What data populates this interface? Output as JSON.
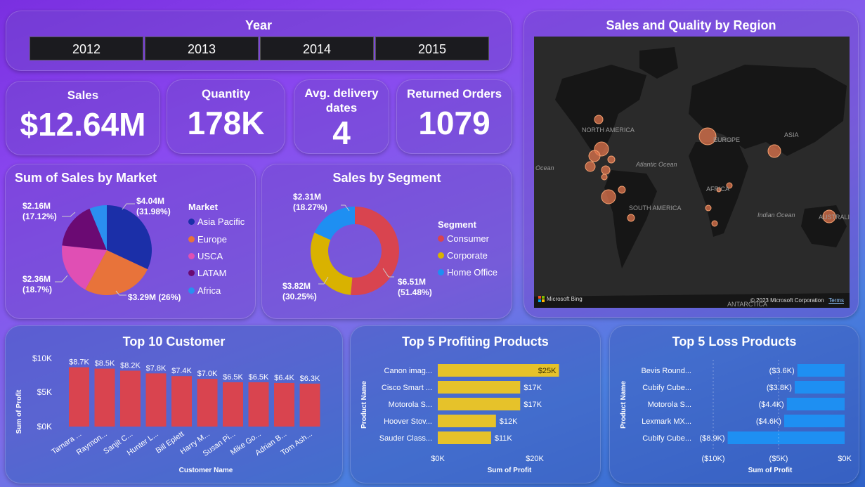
{
  "year_slicer": {
    "title": "Year",
    "years": [
      "2012",
      "2013",
      "2014",
      "2015"
    ]
  },
  "kpis": {
    "sales": {
      "label": "Sales",
      "value": "$12.64M"
    },
    "quantity": {
      "label": "Quantity",
      "value": "178K"
    },
    "delivery": {
      "label": "Avg. delivery dates",
      "value": "4"
    },
    "returned": {
      "label": "Returned Orders",
      "value": "1079"
    }
  },
  "market_chart": {
    "title": "Sum of Sales by Market",
    "legend_title": "Market",
    "legend": [
      "Asia Pacific",
      "Europe",
      "USCA",
      "LATAM",
      "Africa"
    ],
    "colors": [
      "#1b2fa8",
      "#e8733a",
      "#e04fb4",
      "#6b0a73",
      "#2a8ff0"
    ],
    "labels": [
      {
        "line1": "$4.04M",
        "line2": "(31.98%)"
      },
      {
        "line1": "$3.29M (26%)",
        "line2": ""
      },
      {
        "line1": "$2.36M",
        "line2": "(18.7%)"
      },
      {
        "line1": "$2.16M",
        "line2": "(17.12%)"
      }
    ]
  },
  "segment_chart": {
    "title": "Sales by Segment",
    "legend_title": "Segment",
    "legend": [
      "Consumer",
      "Corporate",
      "Home Office"
    ],
    "colors": [
      "#d9444f",
      "#d9b200",
      "#1e8ff2"
    ],
    "labels": [
      {
        "line1": "$6.51M",
        "line2": "(51.48%)"
      },
      {
        "line1": "$3.82M",
        "line2": "(30.25%)"
      },
      {
        "line1": "$2.31M",
        "line2": "(18.27%)"
      }
    ]
  },
  "map": {
    "title": "Sales and Quality by Region",
    "labels": [
      "NORTH AMERICA",
      "EUROPE",
      "ASIA",
      "Atlantic Ocean",
      "AFRICA",
      "SOUTH AMERICA",
      "Indian Ocean",
      "AUSTRALIA",
      "Ocean",
      "ANTARCTICA"
    ],
    "bing": "Microsoft Bing",
    "copyright": "© 2023 Microsoft Corporation",
    "terms": "Terms"
  },
  "customer_chart": {
    "title": "Top 10 Customer",
    "ylabel": "Sum of Profit",
    "xlabel": "Customer Name",
    "yticks": [
      "$10K",
      "$5K",
      "$0K"
    ],
    "names": [
      "Tamara ...",
      "Raymon...",
      "Sanjit C...",
      "Hunter L...",
      "Bill Eplett",
      "Harry M...",
      "Susan Pi...",
      "Mike Go...",
      "Adrian B...",
      "Tom Ash..."
    ],
    "value_labels": [
      "$8.7K",
      "$8.5K",
      "$8.2K",
      "$7.8K",
      "$7.4K",
      "$7.0K",
      "$6.5K",
      "$6.5K",
      "$6.4K",
      "$6.3K"
    ],
    "bar_color": "#d9444f"
  },
  "profit_chart": {
    "title": "Top 5 Profiting Products",
    "ylabel": "Product Name",
    "xlabel": "Sum of Profit",
    "xticks": [
      "$0K",
      "$20K"
    ],
    "names": [
      "Canon imag...",
      "Cisco Smart ...",
      "Motorola S...",
      "Hoover Stov...",
      "Sauder Class..."
    ],
    "value_labels": [
      "$25K",
      "$17K",
      "$17K",
      "$12K",
      "$11K"
    ],
    "bar_color": "#e6c22a"
  },
  "loss_chart": {
    "title": "Top 5 Loss Products",
    "ylabel": "Product Name",
    "xlabel": "Sum of Profit",
    "xticks": [
      "($10K)",
      "($5K)",
      "$0K"
    ],
    "names": [
      "Bevis Round...",
      "Cubify Cube...",
      "Motorola S...",
      "Lexmark MX...",
      "Cubify Cube..."
    ],
    "value_labels": [
      "($3.6K)",
      "($3.8K)",
      "($4.4K)",
      "($4.6K)",
      "($8.9K)"
    ],
    "bar_color": "#1e8ff2"
  },
  "chart_data": [
    {
      "type": "pie",
      "title": "Sum of Sales by Market",
      "categories": [
        "Asia Pacific",
        "Europe",
        "USCA",
        "LATAM",
        "Africa"
      ],
      "values": [
        4.04,
        3.29,
        2.36,
        2.16,
        0.79
      ]
    },
    {
      "type": "pie",
      "title": "Sales by Segment",
      "categories": [
        "Consumer",
        "Corporate",
        "Home Office"
      ],
      "values": [
        6.51,
        3.82,
        2.31
      ]
    },
    {
      "type": "bar",
      "title": "Top 10 Customer",
      "xlabel": "Customer Name",
      "ylabel": "Sum of Profit",
      "categories": [
        "Tamara ...",
        "Raymon...",
        "Sanjit C...",
        "Hunter L...",
        "Bill Eplett",
        "Harry M...",
        "Susan Pi...",
        "Mike Go...",
        "Adrian B...",
        "Tom Ash..."
      ],
      "values": [
        8.7,
        8.5,
        8.2,
        7.8,
        7.4,
        7.0,
        6.5,
        6.5,
        6.4,
        6.3
      ],
      "ylim": [
        0,
        10
      ]
    },
    {
      "type": "bar",
      "title": "Top 5 Profiting Products",
      "xlabel": "Sum of Profit",
      "ylabel": "Product Name",
      "categories": [
        "Canon imag...",
        "Cisco Smart ...",
        "Motorola S...",
        "Hoover Stov...",
        "Sauder Class..."
      ],
      "values": [
        25,
        17,
        17,
        12,
        11
      ],
      "xlim": [
        0,
        27
      ]
    },
    {
      "type": "bar",
      "title": "Top 5 Loss Products",
      "xlabel": "Sum of Profit",
      "ylabel": "Product Name",
      "categories": [
        "Bevis Round...",
        "Cubify Cube...",
        "Motorola S...",
        "Lexmark MX...",
        "Cubify Cube..."
      ],
      "values": [
        -3.6,
        -3.8,
        -4.4,
        -4.6,
        -8.9
      ],
      "xlim": [
        -10,
        0
      ]
    }
  ]
}
